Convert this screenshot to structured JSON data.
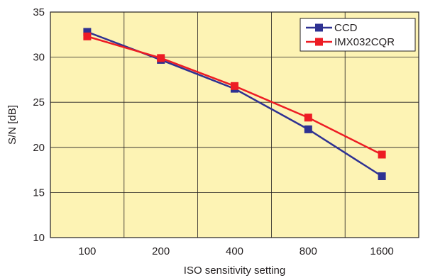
{
  "chart_data": {
    "type": "line",
    "title": "",
    "xlabel": "ISO sensitivity setting",
    "ylabel": "S/N [dB]",
    "categories": [
      "100",
      "200",
      "400",
      "800",
      "1600"
    ],
    "ylim": [
      10,
      35
    ],
    "yticks": [
      10,
      15,
      20,
      25,
      30,
      35
    ],
    "grid": true,
    "legend_position": "top-right",
    "plot_background": "#fdf3b4",
    "series": [
      {
        "name": "CCD",
        "color": "#2e3192",
        "values": [
          32.8,
          29.7,
          26.5,
          22.0,
          16.8
        ]
      },
      {
        "name": "IMX032CQR",
        "color": "#ed1c24",
        "values": [
          32.3,
          29.9,
          26.8,
          23.3,
          19.2
        ]
      }
    ]
  }
}
